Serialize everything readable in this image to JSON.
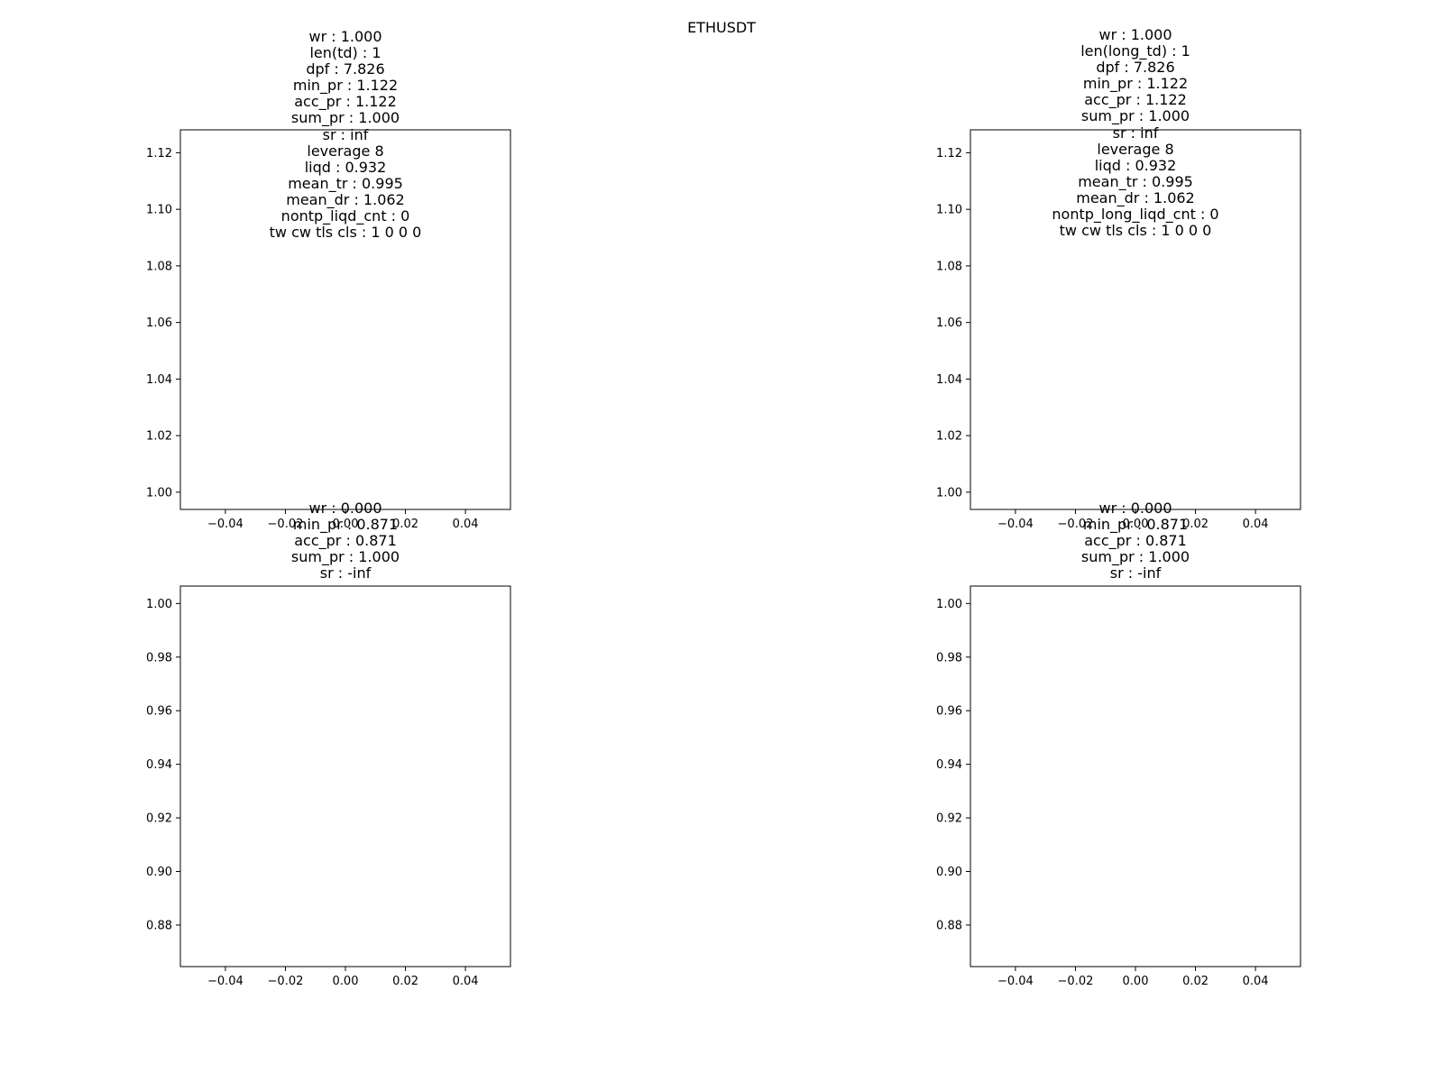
{
  "figure": {
    "title": "ETHUSDT"
  },
  "chart_data": [
    {
      "type": "line",
      "title_lines": [
        "wr : 1.000",
        "len(td) : 1",
        "dpf : 7.826",
        "min_pr : 1.122",
        "acc_pr : 1.122",
        "sum_pr : 1.000",
        "sr : inf",
        "leverage 8",
        "liqd : 0.932",
        "mean_tr : 0.995",
        "mean_dr : 1.062",
        "nontp_liqd_cnt : 0",
        "tw cw tls cls : 1 0 0 0"
      ],
      "xlim": [
        -0.055,
        0.055
      ],
      "ylim": [
        0.9939,
        1.1281
      ],
      "xticks": [
        -0.04,
        -0.02,
        0.0,
        0.02,
        0.04
      ],
      "xtick_labels": [
        "−0.04",
        "−0.02",
        "0.00",
        "0.02",
        "0.04"
      ],
      "yticks": [
        1.0,
        1.02,
        1.04,
        1.06,
        1.08,
        1.1,
        1.12
      ],
      "ytick_labels": [
        "1.00",
        "1.02",
        "1.04",
        "1.06",
        "1.08",
        "1.10",
        "1.12"
      ],
      "series": [],
      "grid": false
    },
    {
      "type": "line",
      "title_lines": [
        "wr : 1.000",
        "len(long_td) : 1",
        "dpf : 7.826",
        "min_pr : 1.122",
        "acc_pr : 1.122",
        "sum_pr : 1.000",
        "sr : inf",
        "leverage 8",
        "liqd : 0.932",
        "mean_tr : 0.995",
        "mean_dr : 1.062",
        "nontp_long_liqd_cnt : 0",
        "tw cw tls cls : 1 0 0 0"
      ],
      "xlim": [
        -0.055,
        0.055
      ],
      "ylim": [
        0.9939,
        1.1281
      ],
      "xticks": [
        -0.04,
        -0.02,
        0.0,
        0.02,
        0.04
      ],
      "xtick_labels": [
        "−0.04",
        "−0.02",
        "0.00",
        "0.02",
        "0.04"
      ],
      "yticks": [
        1.0,
        1.02,
        1.04,
        1.06,
        1.08,
        1.1,
        1.12
      ],
      "ytick_labels": [
        "1.00",
        "1.02",
        "1.04",
        "1.06",
        "1.08",
        "1.10",
        "1.12"
      ],
      "series": [],
      "grid": false
    },
    {
      "type": "line",
      "title_lines": [
        "wr : 0.000",
        "min_pr : 0.871",
        "acc_pr : 0.871",
        "sum_pr : 1.000",
        "sr : -inf"
      ],
      "xlim": [
        -0.055,
        0.055
      ],
      "ylim": [
        0.8645,
        1.0065
      ],
      "xticks": [
        -0.04,
        -0.02,
        0.0,
        0.02,
        0.04
      ],
      "xtick_labels": [
        "−0.04",
        "−0.02",
        "0.00",
        "0.02",
        "0.04"
      ],
      "yticks": [
        0.88,
        0.9,
        0.92,
        0.94,
        0.96,
        0.98,
        1.0
      ],
      "ytick_labels": [
        "0.88",
        "0.90",
        "0.92",
        "0.94",
        "0.96",
        "0.98",
        "1.00"
      ],
      "series": [],
      "grid": false
    },
    {
      "type": "line",
      "title_lines": [
        "wr : 0.000",
        "min_pr : 0.871",
        "acc_pr : 0.871",
        "sum_pr : 1.000",
        "sr : -inf"
      ],
      "xlim": [
        -0.055,
        0.055
      ],
      "ylim": [
        0.8645,
        1.0065
      ],
      "xticks": [
        -0.04,
        -0.02,
        0.0,
        0.02,
        0.04
      ],
      "xtick_labels": [
        "−0.04",
        "−0.02",
        "0.00",
        "0.02",
        "0.04"
      ],
      "yticks": [
        0.88,
        0.9,
        0.92,
        0.94,
        0.96,
        0.98,
        1.0
      ],
      "ytick_labels": [
        "0.88",
        "0.90",
        "0.92",
        "0.94",
        "0.96",
        "0.98",
        "1.00"
      ],
      "series": [],
      "grid": false
    }
  ]
}
